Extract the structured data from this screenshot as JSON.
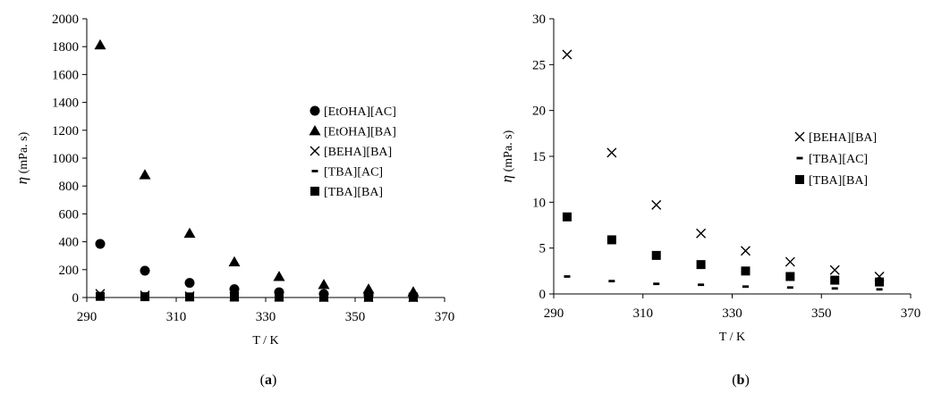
{
  "chart_data": [
    {
      "type": "scatter",
      "panel_label": "(a)",
      "xlabel": "T / K",
      "ylabel": "(mPa. s)",
      "ylabel_symbol": "η",
      "xlim": [
        290,
        370
      ],
      "ylim": [
        0,
        2000
      ],
      "xticks": [
        290,
        310,
        330,
        350,
        370
      ],
      "yticks": [
        0,
        200,
        400,
        600,
        800,
        1000,
        1200,
        1400,
        1600,
        1800,
        2000
      ],
      "legend_position": "right",
      "series": [
        {
          "name": "[EtOHA][AC]",
          "marker": "circle",
          "x": [
            293,
            303,
            313,
            323,
            333,
            343,
            353,
            363
          ],
          "y": [
            385,
            192,
            105,
            60,
            38,
            25,
            17,
            12
          ]
        },
        {
          "name": "[EtOHA][BA]",
          "marker": "triangle",
          "x": [
            293,
            303,
            313,
            323,
            333,
            343,
            353,
            363
          ],
          "y": [
            1812,
            880,
            460,
            255,
            150,
            92,
            60,
            40
          ]
        },
        {
          "name": "[BEHA][BA]",
          "marker": "cross",
          "x": [
            293,
            303,
            313,
            323,
            333,
            343,
            353,
            363
          ],
          "y": [
            26.1,
            15.4,
            9.7,
            6.6,
            4.7,
            3.5,
            2.6,
            1.9
          ]
        },
        {
          "name": "[TBA][AC]",
          "marker": "dash",
          "x": [
            293,
            303,
            313,
            323,
            333,
            343,
            353,
            363
          ],
          "y": [
            1.9,
            1.4,
            1.1,
            1.0,
            0.8,
            0.7,
            0.6,
            0.5
          ]
        },
        {
          "name": "[TBA][BA]",
          "marker": "square",
          "x": [
            293,
            303,
            313,
            323,
            333,
            343,
            353,
            363
          ],
          "y": [
            8.4,
            5.9,
            4.2,
            3.2,
            2.5,
            1.9,
            1.5,
            1.3
          ]
        }
      ]
    },
    {
      "type": "scatter",
      "panel_label": "(b)",
      "xlabel": "T / K",
      "ylabel": "(mPa. s)",
      "ylabel_symbol": "η",
      "xlim": [
        290,
        370
      ],
      "ylim": [
        0,
        30
      ],
      "xticks": [
        290,
        310,
        330,
        350,
        370
      ],
      "yticks": [
        0,
        5,
        10,
        15,
        20,
        25,
        30
      ],
      "legend_position": "right",
      "series": [
        {
          "name": "[BEHA][BA]",
          "marker": "cross",
          "x": [
            293,
            303,
            313,
            323,
            333,
            343,
            353,
            363
          ],
          "y": [
            26.1,
            15.4,
            9.7,
            6.6,
            4.7,
            3.5,
            2.6,
            1.9
          ]
        },
        {
          "name": "[TBA][AC]",
          "marker": "dash",
          "x": [
            293,
            303,
            313,
            323,
            333,
            343,
            353,
            363
          ],
          "y": [
            1.9,
            1.4,
            1.1,
            1.0,
            0.8,
            0.7,
            0.6,
            0.5
          ]
        },
        {
          "name": "[TBA][BA]",
          "marker": "square",
          "x": [
            293,
            303,
            313,
            323,
            333,
            343,
            353,
            363
          ],
          "y": [
            8.4,
            5.9,
            4.2,
            3.2,
            2.5,
            1.9,
            1.5,
            1.3
          ]
        }
      ]
    }
  ]
}
